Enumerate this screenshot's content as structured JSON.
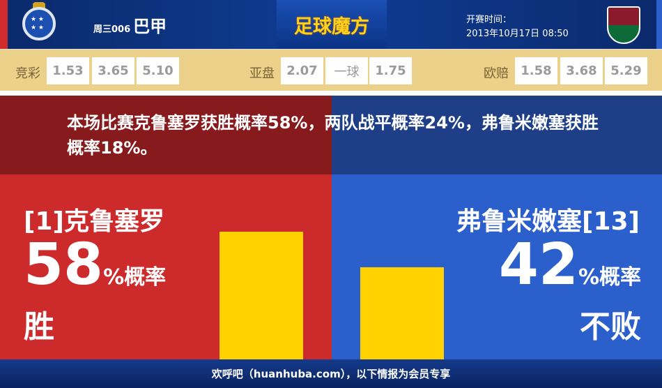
{
  "header": {
    "match_no": "周三006",
    "league": "巴甲",
    "logo_text": "足球魔方",
    "kickoff_label": "开赛时间：",
    "kickoff_time": "2013年10月17日 08:50",
    "home_crest": "Cruzeiro Esporte Clube",
    "away_crest": "Fluminense"
  },
  "odds": {
    "jingcai": {
      "label": "竞彩",
      "values": [
        "1.53",
        "3.65",
        "5.10"
      ]
    },
    "yapan": {
      "label": "亚盘",
      "values": [
        "2.07",
        "一球",
        "1.75"
      ]
    },
    "oupei": {
      "label": "欧赔",
      "values": [
        "1.58",
        "3.68",
        "5.29"
      ]
    }
  },
  "summary": "本场比赛克鲁塞罗获胜概率58%，两队战平概率24%，弗鲁米嫩塞获胜概率18%。",
  "home": {
    "name": "[1]克鲁塞罗",
    "percent": "58",
    "unit": "%概率",
    "result": "胜",
    "value": 58
  },
  "away": {
    "name": "弗鲁米嫩塞[13]",
    "percent": "42",
    "unit": "%概率",
    "result": "不败",
    "value": 42
  },
  "colors": {
    "home": "#cc2a2b",
    "away": "#2a5fcc",
    "bar": "#ffd200",
    "odds_bg": "#ecd18a"
  },
  "footer": "欢呼吧（huanhuba.com），以下情报为会员专享"
}
